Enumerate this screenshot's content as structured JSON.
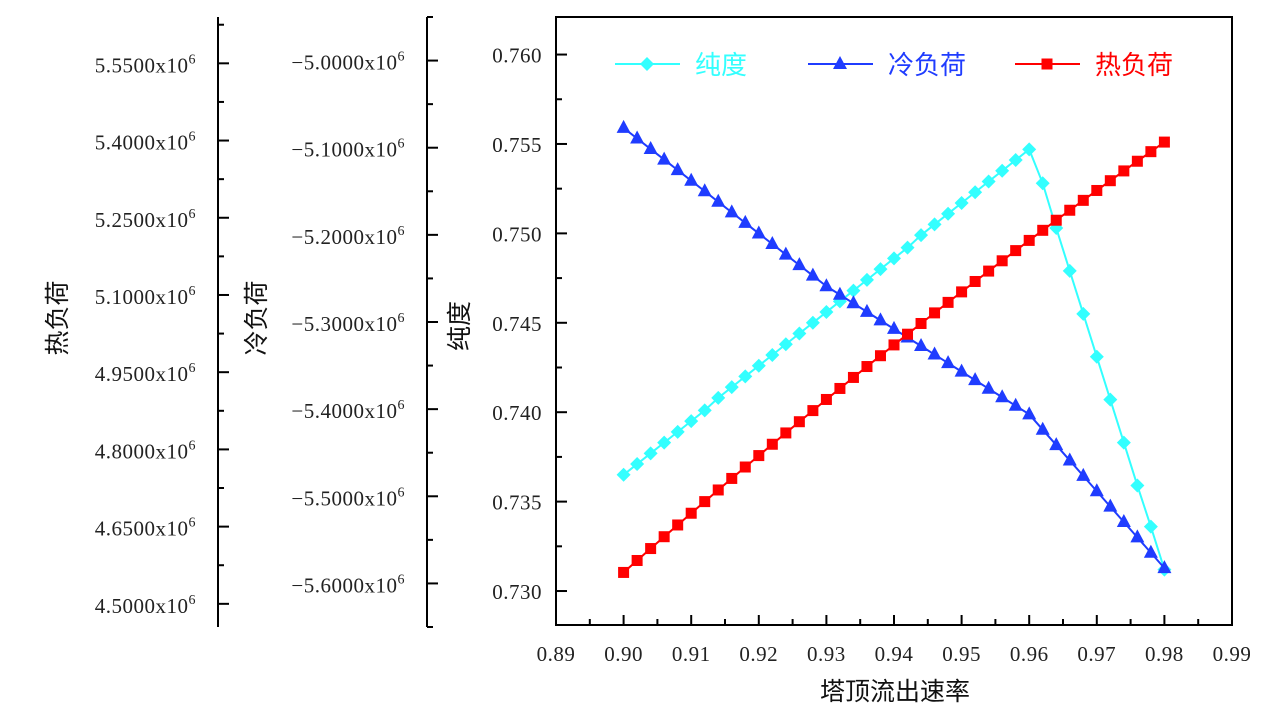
{
  "chart_data": {
    "type": "line",
    "title": "",
    "xlabel": "塔顶流出速率",
    "xlim": [
      0.89,
      0.99
    ],
    "x_ticks": [
      "0.89",
      "0.90",
      "0.91",
      "0.92",
      "0.93",
      "0.94",
      "0.95",
      "0.96",
      "0.97",
      "0.98",
      "0.99"
    ],
    "x": [
      0.9,
      0.902,
      0.904,
      0.906,
      0.908,
      0.91,
      0.912,
      0.914,
      0.916,
      0.918,
      0.92,
      0.922,
      0.924,
      0.926,
      0.928,
      0.93,
      0.932,
      0.934,
      0.936,
      0.938,
      0.94,
      0.942,
      0.944,
      0.946,
      0.948,
      0.95,
      0.952,
      0.954,
      0.956,
      0.958,
      0.96,
      0.962,
      0.964,
      0.966,
      0.968,
      0.97,
      0.972,
      0.974,
      0.976,
      0.978,
      0.98
    ],
    "y_axes": [
      {
        "id": "hot",
        "label": "热负荷",
        "ylim": [
          4455000,
          5640000
        ],
        "ticks": [
          {
            "label": "5.5500x10",
            "exp": "6",
            "value": 5550000
          },
          {
            "label": "5.4000x10",
            "exp": "6",
            "value": 5400000
          },
          {
            "label": "5.2500x10",
            "exp": "6",
            "value": 5250000
          },
          {
            "label": "5.1000x10",
            "exp": "6",
            "value": 5100000
          },
          {
            "label": "4.9500x10",
            "exp": "6",
            "value": 4950000
          },
          {
            "label": "4.8000x10",
            "exp": "6",
            "value": 4800000
          },
          {
            "label": "4.6500x10",
            "exp": "6",
            "value": 4650000
          },
          {
            "label": "4.5000x10",
            "exp": "6",
            "value": 4500000
          }
        ]
      },
      {
        "id": "cold",
        "label": "冷负荷",
        "ylim": [
          -5650000,
          -4950000
        ],
        "ticks": [
          {
            "label": "−5.0000x10",
            "exp": "6",
            "value": -5000000
          },
          {
            "label": "−5.1000x10",
            "exp": "6",
            "value": -5100000
          },
          {
            "label": "−5.2000x10",
            "exp": "6",
            "value": -5200000
          },
          {
            "label": "−5.3000x10",
            "exp": "6",
            "value": -5300000
          },
          {
            "label": "−5.4000x10",
            "exp": "6",
            "value": -5400000
          },
          {
            "label": "−5.5000x10",
            "exp": "6",
            "value": -5500000
          },
          {
            "label": "−5.6000x10",
            "exp": "6",
            "value": -5600000
          }
        ]
      },
      {
        "id": "purity",
        "label": "纯度",
        "ylim": [
          0.7281,
          0.7621
        ],
        "ticks": [
          {
            "label": "0.760",
            "value": 0.76
          },
          {
            "label": "0.755",
            "value": 0.755
          },
          {
            "label": "0.750",
            "value": 0.75
          },
          {
            "label": "0.745",
            "value": 0.745
          },
          {
            "label": "0.740",
            "value": 0.74
          },
          {
            "label": "0.735",
            "value": 0.735
          },
          {
            "label": "0.730",
            "value": 0.73
          }
        ]
      }
    ],
    "series": [
      {
        "name": "纯度",
        "axis": "purity",
        "color": "#33ffff",
        "marker": "diamond",
        "values": [
          0.7365,
          0.7371,
          0.7377,
          0.7383,
          0.7389,
          0.7395,
          0.7401,
          0.7408,
          0.7414,
          0.742,
          0.7426,
          0.7432,
          0.7438,
          0.7444,
          0.745,
          0.7456,
          0.7462,
          0.7468,
          0.7474,
          0.748,
          0.7486,
          0.7492,
          0.7499,
          0.7505,
          0.7511,
          0.7517,
          0.7523,
          0.7529,
          0.7535,
          0.7541,
          0.7547,
          0.7528,
          0.7503,
          0.7479,
          0.7455,
          0.7431,
          0.7407,
          0.7383,
          0.7359,
          0.7336,
          0.7312
        ]
      },
      {
        "name": "冷负荷",
        "axis": "cold",
        "color": "#1f3cff",
        "marker": "triangle",
        "values": [
          -5077300,
          -5089410,
          -5101520,
          -5113630,
          -5125740,
          -5137850,
          -5149960,
          -5162070,
          -5174180,
          -5186290,
          -5198400,
          -5210510,
          -5222620,
          -5234730,
          -5246840,
          -5258950,
          -5268750,
          -5278550,
          -5288350,
          -5298150,
          -5307950,
          -5317750,
          -5327550,
          -5337350,
          -5347150,
          -5356950,
          -5366750,
          -5376550,
          -5386350,
          -5396150,
          -5405950,
          -5423600,
          -5441250,
          -5458900,
          -5476550,
          -5494200,
          -5511850,
          -5529500,
          -5547150,
          -5564800,
          -5582450
        ]
      },
      {
        "name": "热负荷",
        "axis": "hot",
        "color": "#ff0000",
        "marker": "square",
        "values": [
          4561000,
          4584200,
          4607400,
          4630400,
          4653200,
          4676000,
          4698600,
          4721200,
          4743600,
          4765800,
          4788000,
          4810000,
          4832000,
          4853800,
          4875400,
          4897000,
          4918400,
          4939800,
          4961000,
          4982000,
          5003000,
          5023800,
          5044600,
          5065200,
          5085600,
          5106000,
          5126200,
          5146400,
          5166400,
          5186200,
          5206000,
          5225600,
          5245200,
          5264600,
          5283800,
          5303000,
          5322000,
          5341000,
          5359800,
          5378400,
          5397000
        ]
      }
    ],
    "legend": {
      "placement": "top",
      "entries": [
        "纯度",
        "冷负荷",
        "热负荷"
      ]
    },
    "grid": false
  }
}
